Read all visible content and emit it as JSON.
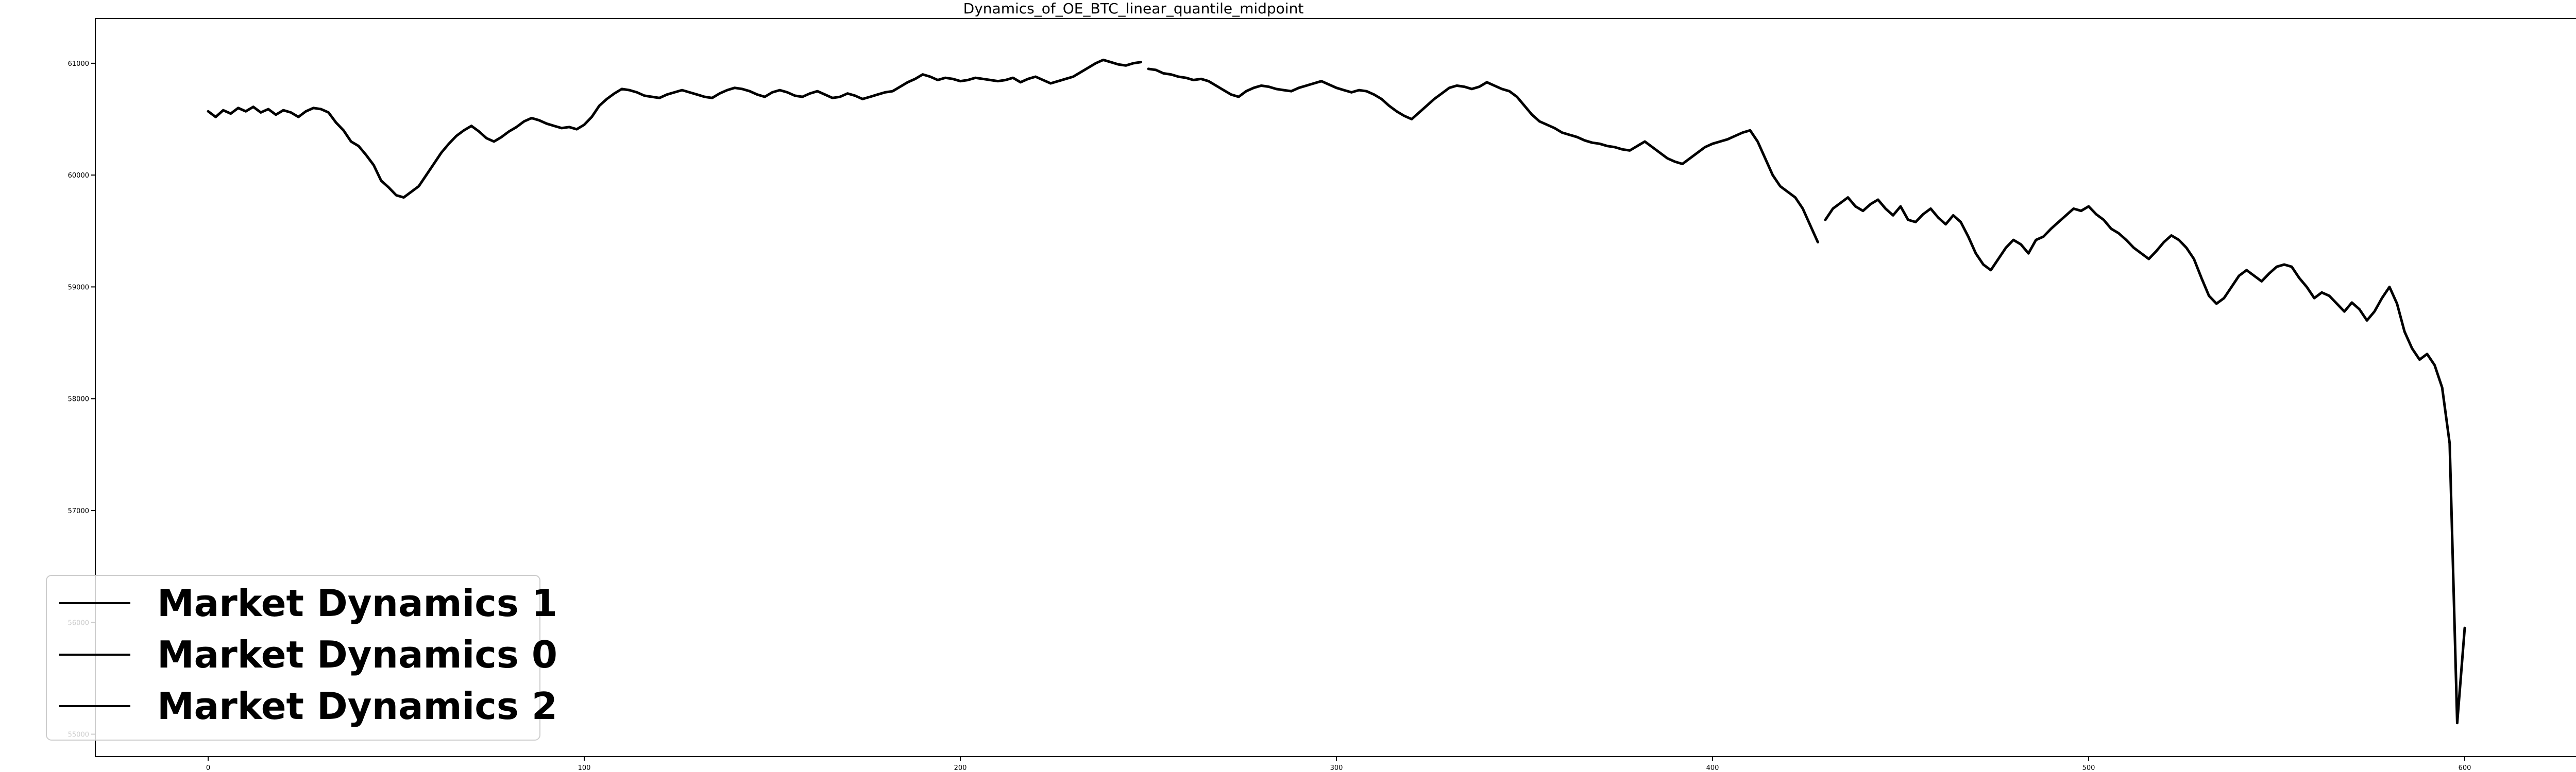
{
  "chart_data": {
    "type": "line",
    "title": "Dynamics_of_OE_BTC_linear_quantile_midpoint",
    "xlabel": "",
    "ylabel": "",
    "xlim": [
      -30,
      630
    ],
    "ylim": [
      54800,
      61400
    ],
    "x_ticks": [
      0,
      100,
      200,
      300,
      400,
      500,
      600
    ],
    "y_ticks": [
      55000,
      56000,
      57000,
      58000,
      59000,
      60000,
      61000
    ],
    "grid": false,
    "legend_position": "lower-left",
    "line_color": "#000000",
    "legend": [
      "Market Dynamics 1",
      "Market Dynamics 0",
      "Market Dynamics 2"
    ],
    "series": [
      {
        "name": "Market Dynamics 1",
        "x": [
          0,
          2,
          4,
          6,
          8,
          10,
          12,
          14,
          16,
          18,
          20,
          22,
          24,
          26,
          28,
          30,
          32,
          34,
          36,
          38,
          40,
          42,
          44,
          46,
          48,
          50,
          52,
          54,
          56,
          58,
          60,
          62,
          64,
          66,
          68,
          70,
          72,
          74,
          76,
          78,
          80,
          82,
          84,
          86,
          88,
          90,
          92,
          94,
          96,
          98,
          100,
          102,
          104,
          106,
          108,
          110,
          112,
          114,
          116,
          118,
          120,
          122,
          124,
          126,
          128,
          130,
          132,
          134,
          136,
          138,
          140,
          142,
          144,
          146,
          148,
          150,
          152,
          154,
          156,
          158,
          160,
          162,
          164,
          166,
          168,
          170,
          172,
          174,
          176,
          178,
          180,
          182,
          184,
          186,
          188,
          190,
          192,
          194,
          196,
          198,
          200,
          202,
          204,
          206,
          208,
          210,
          212,
          214,
          216,
          218,
          220,
          222,
          224,
          226,
          228,
          230,
          232,
          234,
          236,
          238,
          240,
          242,
          244,
          246,
          248
        ],
        "y": [
          60570,
          60520,
          60580,
          60550,
          60600,
          60570,
          60610,
          60560,
          60590,
          60540,
          60580,
          60560,
          60520,
          60570,
          60600,
          60590,
          60560,
          60470,
          60400,
          60300,
          60260,
          60180,
          60090,
          59950,
          59890,
          59820,
          59800,
          59850,
          59900,
          60000,
          60100,
          60200,
          60280,
          60350,
          60400,
          60440,
          60390,
          60330,
          60300,
          60340,
          60390,
          60430,
          60480,
          60510,
          60490,
          60460,
          60440,
          60420,
          60430,
          60410,
          60450,
          60520,
          60620,
          60680,
          60730,
          60770,
          60760,
          60740,
          60710,
          60700,
          60690,
          60720,
          60740,
          60760,
          60740,
          60720,
          60700,
          60690,
          60730,
          60760,
          60780,
          60770,
          60750,
          60720,
          60700,
          60740,
          60760,
          60740,
          60710,
          60700,
          60730,
          60750,
          60720,
          60690,
          60700,
          60730,
          60710,
          60680,
          60700,
          60720,
          60740,
          60750,
          60790,
          60830,
          60860,
          60900,
          60880,
          60850,
          60870,
          60860,
          60840,
          60850,
          60870,
          60860,
          60850,
          60840,
          60850,
          60870,
          60830,
          60860,
          60880,
          60850,
          60820,
          60840,
          60860,
          60880,
          60920,
          60960,
          61000,
          61030,
          61010,
          60990,
          60980,
          61000,
          61010
        ]
      },
      {
        "name": "Market Dynamics 0",
        "x": [
          250,
          252,
          254,
          256,
          258,
          260,
          262,
          264,
          266,
          268,
          270,
          272,
          274,
          276,
          278,
          280,
          282,
          284,
          286,
          288,
          290,
          292,
          294,
          296,
          298,
          300,
          302,
          304,
          306,
          308,
          310,
          312,
          314,
          316,
          318,
          320,
          322,
          324,
          326,
          328,
          330,
          332,
          334,
          336,
          338,
          340,
          342,
          344,
          346,
          348,
          350,
          352,
          354,
          356,
          358,
          360,
          362,
          364,
          366,
          368,
          370,
          372,
          374,
          376,
          378,
          380,
          382,
          384,
          386,
          388,
          390,
          392,
          394,
          396,
          398,
          400,
          402,
          404,
          406,
          408,
          410,
          412,
          414,
          416,
          418,
          420,
          422,
          424,
          426,
          428
        ],
        "y": [
          60950,
          60940,
          60910,
          60900,
          60880,
          60870,
          60850,
          60860,
          60840,
          60800,
          60760,
          60720,
          60700,
          60750,
          60780,
          60800,
          60790,
          60770,
          60760,
          60750,
          60780,
          60800,
          60820,
          60840,
          60810,
          60780,
          60760,
          60740,
          60760,
          60750,
          60720,
          60680,
          60620,
          60570,
          60530,
          60500,
          60560,
          60620,
          60680,
          60730,
          60780,
          60800,
          60790,
          60770,
          60790,
          60830,
          60800,
          60770,
          60750,
          60700,
          60620,
          60540,
          60480,
          60450,
          60420,
          60380,
          60360,
          60340,
          60310,
          60290,
          60280,
          60260,
          60250,
          60230,
          60220,
          60260,
          60300,
          60250,
          60200,
          60150,
          60120,
          60100,
          60150,
          60200,
          60250,
          60280,
          60300,
          60320,
          60350,
          60380,
          60400,
          60300,
          60150,
          60000,
          59900,
          59850,
          59800,
          59700,
          59550,
          59400
        ]
      },
      {
        "name": "Market Dynamics 2",
        "x": [
          430,
          432,
          434,
          436,
          438,
          440,
          442,
          444,
          446,
          448,
          450,
          452,
          454,
          456,
          458,
          460,
          462,
          464,
          466,
          468,
          470,
          472,
          474,
          476,
          478,
          480,
          482,
          484,
          486,
          488,
          490,
          492,
          494,
          496,
          498,
          500,
          502,
          504,
          506,
          508,
          510,
          512,
          514,
          516,
          518,
          520,
          522,
          524,
          526,
          528,
          530,
          532,
          534,
          536,
          538,
          540,
          542,
          544,
          546,
          548,
          550,
          552,
          554,
          556,
          558,
          560,
          562,
          564,
          566,
          568,
          570,
          572,
          574,
          576,
          578,
          580,
          582,
          584,
          586,
          588,
          590,
          592,
          594,
          596,
          598,
          600
        ],
        "y": [
          59600,
          59700,
          59750,
          59800,
          59720,
          59680,
          59740,
          59780,
          59700,
          59640,
          59720,
          59600,
          59580,
          59650,
          59700,
          59620,
          59560,
          59640,
          59580,
          59450,
          59300,
          59200,
          59150,
          59250,
          59350,
          59420,
          59380,
          59300,
          59420,
          59450,
          59520,
          59580,
          59640,
          59700,
          59680,
          59720,
          59650,
          59600,
          59520,
          59480,
          59420,
          59350,
          59300,
          59250,
          59320,
          59400,
          59460,
          59420,
          59350,
          59250,
          59080,
          58920,
          58850,
          58900,
          59000,
          59100,
          59150,
          59100,
          59050,
          59120,
          59180,
          59200,
          59180,
          59080,
          59000,
          58900,
          58950,
          58920,
          58850,
          58780,
          58860,
          58800,
          58700,
          58780,
          58900,
          59000,
          58850,
          58600,
          58450,
          58350,
          58400,
          58300,
          58100,
          57600,
          55100,
          55950
        ]
      }
    ]
  }
}
